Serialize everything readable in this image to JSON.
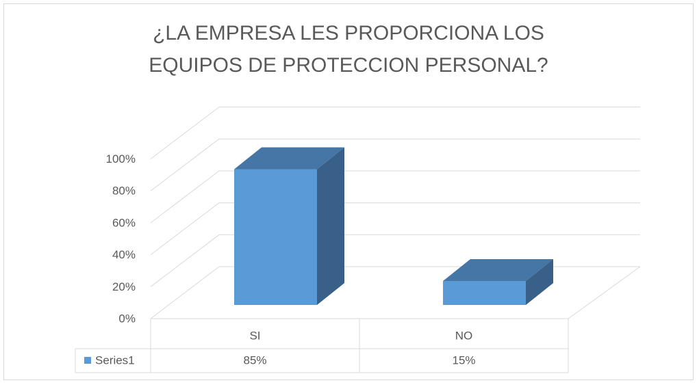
{
  "chart_data": {
    "type": "bar3d",
    "title": "¿LA EMPRESA LES PROPORCIONA LOS EQUIPOS DE PROTECCION PERSONAL?",
    "categories": [
      "SI",
      "NO"
    ],
    "series": [
      {
        "name": "Series1",
        "color": "#5b9bd5",
        "values": [
          85,
          15
        ],
        "value_labels": [
          "85%",
          "15%"
        ]
      }
    ],
    "ylim": [
      0,
      100
    ],
    "yticks": [
      {
        "value": 0,
        "label": "0%"
      },
      {
        "value": 20,
        "label": "20%"
      },
      {
        "value": 40,
        "label": "40%"
      },
      {
        "value": 60,
        "label": "60%"
      },
      {
        "value": 80,
        "label": "80%"
      },
      {
        "value": 100,
        "label": "100%"
      }
    ],
    "grid": true,
    "data_table": true
  }
}
